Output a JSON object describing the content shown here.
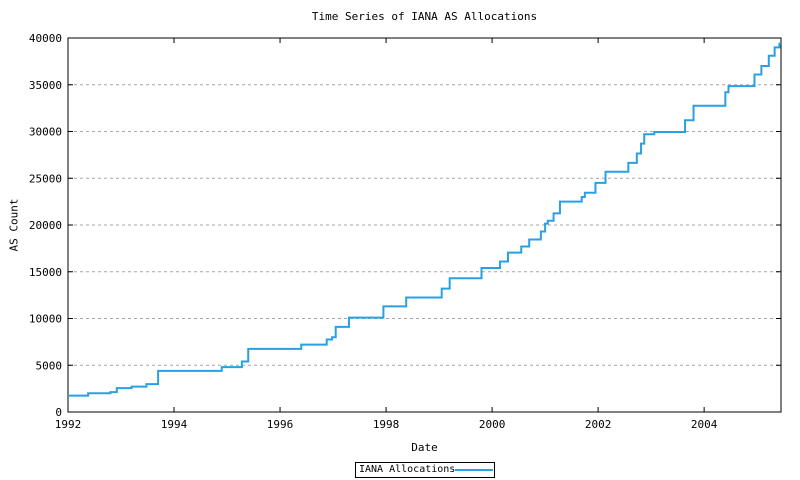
{
  "chart_data": {
    "type": "step-line",
    "title": "Time Series of IANA AS Allocations",
    "xlabel": "Date",
    "ylabel": "AS Count",
    "xlim": [
      1992,
      2005.45
    ],
    "ylim": [
      0,
      40000
    ],
    "x_ticks": [
      1992,
      1994,
      1996,
      1998,
      2000,
      2002,
      2004
    ],
    "y_ticks": [
      0,
      5000,
      10000,
      15000,
      20000,
      25000,
      30000,
      35000,
      40000
    ],
    "grid_y": [
      5000,
      10000,
      15000,
      20000,
      25000,
      30000,
      35000
    ],
    "grid_style": "dotted",
    "legend": {
      "label": "IANA Allocations",
      "position": "bottom-center-outside"
    },
    "colors": {
      "line": "#29a0e2",
      "grid": "#a6a6a6",
      "border": "#000000",
      "background": "#ffffff"
    },
    "series": [
      {
        "name": "IANA Allocations",
        "points": [
          [
            1992.0,
            1750
          ],
          [
            1992.38,
            2000
          ],
          [
            1992.8,
            2130
          ],
          [
            1992.92,
            2550
          ],
          [
            1993.2,
            2720
          ],
          [
            1993.48,
            2980
          ],
          [
            1993.7,
            4400
          ],
          [
            1994.9,
            4800
          ],
          [
            1995.28,
            5400
          ],
          [
            1995.4,
            6750
          ],
          [
            1996.4,
            7200
          ],
          [
            1996.88,
            7750
          ],
          [
            1996.98,
            8000
          ],
          [
            1997.05,
            9100
          ],
          [
            1997.3,
            10100
          ],
          [
            1997.95,
            11300
          ],
          [
            1998.38,
            12250
          ],
          [
            1999.05,
            13200
          ],
          [
            1999.2,
            14300
          ],
          [
            1999.8,
            15400
          ],
          [
            2000.15,
            16100
          ],
          [
            2000.3,
            17050
          ],
          [
            2000.55,
            17700
          ],
          [
            2000.7,
            18450
          ],
          [
            2000.92,
            19300
          ],
          [
            2001.0,
            20150
          ],
          [
            2001.05,
            20450
          ],
          [
            2001.16,
            21250
          ],
          [
            2001.28,
            22500
          ],
          [
            2001.69,
            23000
          ],
          [
            2001.75,
            23450
          ],
          [
            2001.95,
            24500
          ],
          [
            2002.14,
            25700
          ],
          [
            2002.57,
            26650
          ],
          [
            2002.73,
            27650
          ],
          [
            2002.81,
            28700
          ],
          [
            2002.87,
            29700
          ],
          [
            2003.06,
            29950
          ],
          [
            2003.64,
            31200
          ],
          [
            2003.8,
            32750
          ],
          [
            2004.4,
            34200
          ],
          [
            2004.46,
            34850
          ],
          [
            2004.95,
            36100
          ],
          [
            2005.08,
            37000
          ],
          [
            2005.22,
            38100
          ],
          [
            2005.33,
            39000
          ],
          [
            2005.42,
            39400
          ]
        ]
      }
    ]
  }
}
